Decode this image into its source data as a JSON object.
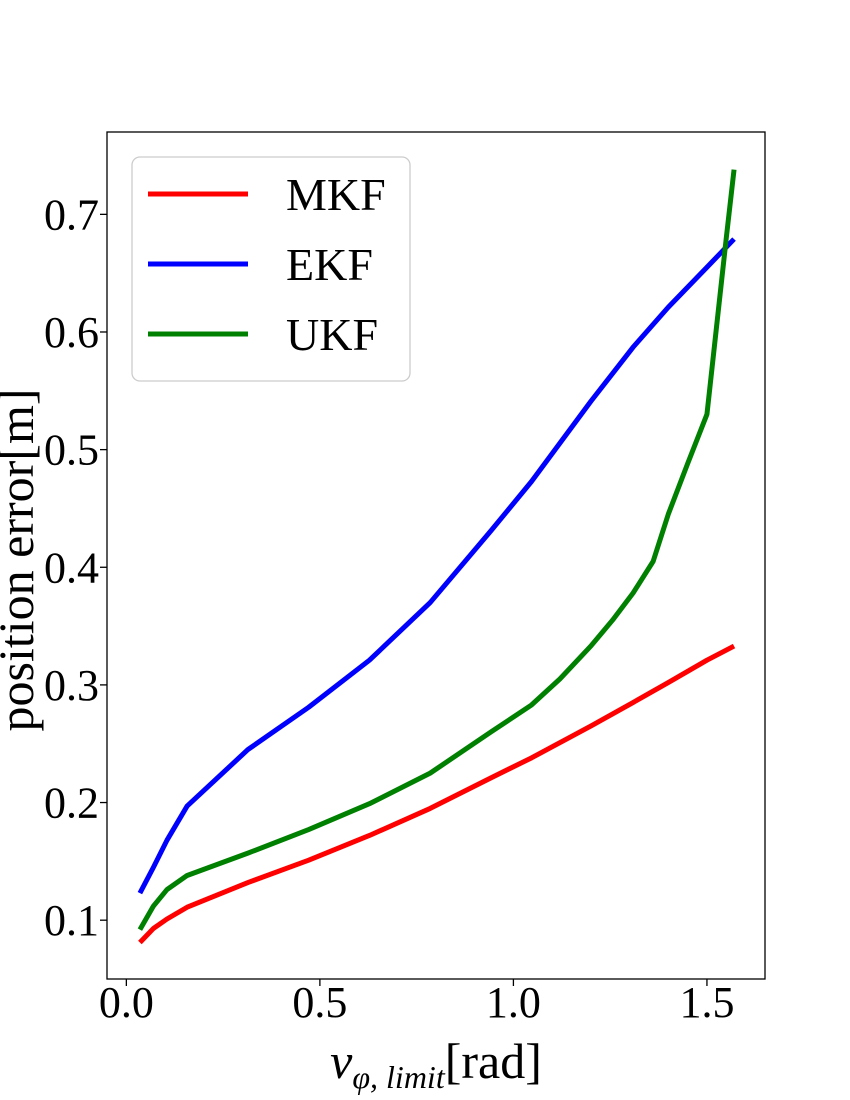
{
  "chart_data": {
    "type": "line",
    "xlabel_main": "v",
    "xlabel_sub": "φ, limit",
    "xlabel_unit": "[rad]",
    "ylabel": "position error[m]",
    "xlim": [
      -0.05,
      1.65
    ],
    "ylim": [
      0.05,
      0.77
    ],
    "xticks": [
      0.0,
      0.5,
      1.0,
      1.5
    ],
    "xtick_labels": [
      "0.0",
      "0.5",
      "1.0",
      "1.5"
    ],
    "yticks": [
      0.1,
      0.2,
      0.3,
      0.4,
      0.5,
      0.6,
      0.7
    ],
    "ytick_labels": [
      "0.1",
      "0.2",
      "0.3",
      "0.4",
      "0.5",
      "0.6",
      "0.7"
    ],
    "grid": false,
    "legend_position": "top-left",
    "series": [
      {
        "name": "MKF",
        "color": "#ff0000",
        "x": [
          0.035,
          0.07,
          0.105,
          0.157,
          0.314,
          0.471,
          0.628,
          0.785,
          0.942,
          1.047,
          1.2,
          1.309,
          1.4,
          1.5,
          1.57
        ],
        "y": [
          0.081,
          0.093,
          0.101,
          0.111,
          0.132,
          0.151,
          0.172,
          0.195,
          0.221,
          0.238,
          0.265,
          0.285,
          0.302,
          0.321,
          0.333
        ]
      },
      {
        "name": "EKF",
        "color": "#0000ff",
        "x": [
          0.035,
          0.07,
          0.105,
          0.157,
          0.314,
          0.471,
          0.628,
          0.785,
          0.942,
          1.047,
          1.2,
          1.309,
          1.4,
          1.5,
          1.57
        ],
        "y": [
          0.123,
          0.145,
          0.168,
          0.197,
          0.245,
          0.281,
          0.321,
          0.37,
          0.431,
          0.473,
          0.541,
          0.587,
          0.621,
          0.655,
          0.679
        ]
      },
      {
        "name": "UKF",
        "color": "#008000",
        "x": [
          0.035,
          0.07,
          0.105,
          0.157,
          0.314,
          0.471,
          0.628,
          0.785,
          0.942,
          1.047,
          1.12,
          1.2,
          1.256,
          1.309,
          1.361,
          1.4,
          1.45,
          1.5,
          1.55,
          1.57
        ],
        "y": [
          0.092,
          0.112,
          0.126,
          0.138,
          0.157,
          0.177,
          0.199,
          0.225,
          0.26,
          0.283,
          0.305,
          0.333,
          0.355,
          0.378,
          0.405,
          0.445,
          0.488,
          0.53,
          0.68,
          0.738
        ]
      }
    ]
  }
}
